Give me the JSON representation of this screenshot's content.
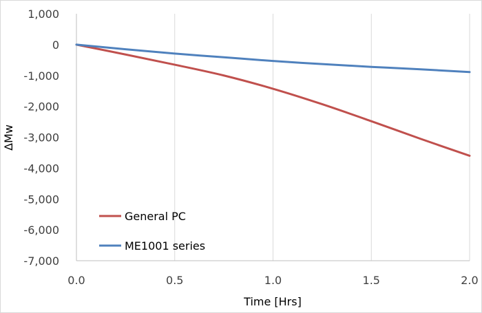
{
  "chart_data": {
    "type": "line",
    "title": "",
    "xlabel": "Time [Hrs]",
    "ylabel": "ΔMw",
    "xlim": [
      0,
      2
    ],
    "ylim": [
      -7000,
      1000
    ],
    "xticks": [
      0,
      0.5,
      1,
      1.5,
      2
    ],
    "xtick_labels": [
      "0.0",
      "0.5",
      "1.0",
      "1.5",
      "2.0"
    ],
    "yticks": [
      1000,
      0,
      -1000,
      -2000,
      -3000,
      -4000,
      -5000,
      -6000,
      -7000
    ],
    "ytick_labels": [
      "1,000",
      "0",
      "-1,000",
      "-2,000",
      "-3,000",
      "-4,000",
      "-5,000",
      "-6,000",
      "-7,000"
    ],
    "grid": "vertical",
    "legend_position": "bottom-left",
    "series": [
      {
        "name": "General PC",
        "color": "#c0504d",
        "x": [
          0,
          0.25,
          0.5,
          0.75,
          1.0,
          1.25,
          1.5,
          1.75,
          2.0
        ],
        "y": [
          0,
          -320,
          -650,
          -1000,
          -1430,
          -1930,
          -2480,
          -3050,
          -3600
        ]
      },
      {
        "name": "ME1001 series",
        "color": "#4f81bd",
        "x": [
          0,
          0.25,
          0.5,
          0.75,
          1.0,
          1.25,
          1.5,
          1.75,
          2.0
        ],
        "y": [
          0,
          -150,
          -290,
          -410,
          -530,
          -630,
          -720,
          -800,
          -890
        ]
      }
    ]
  }
}
